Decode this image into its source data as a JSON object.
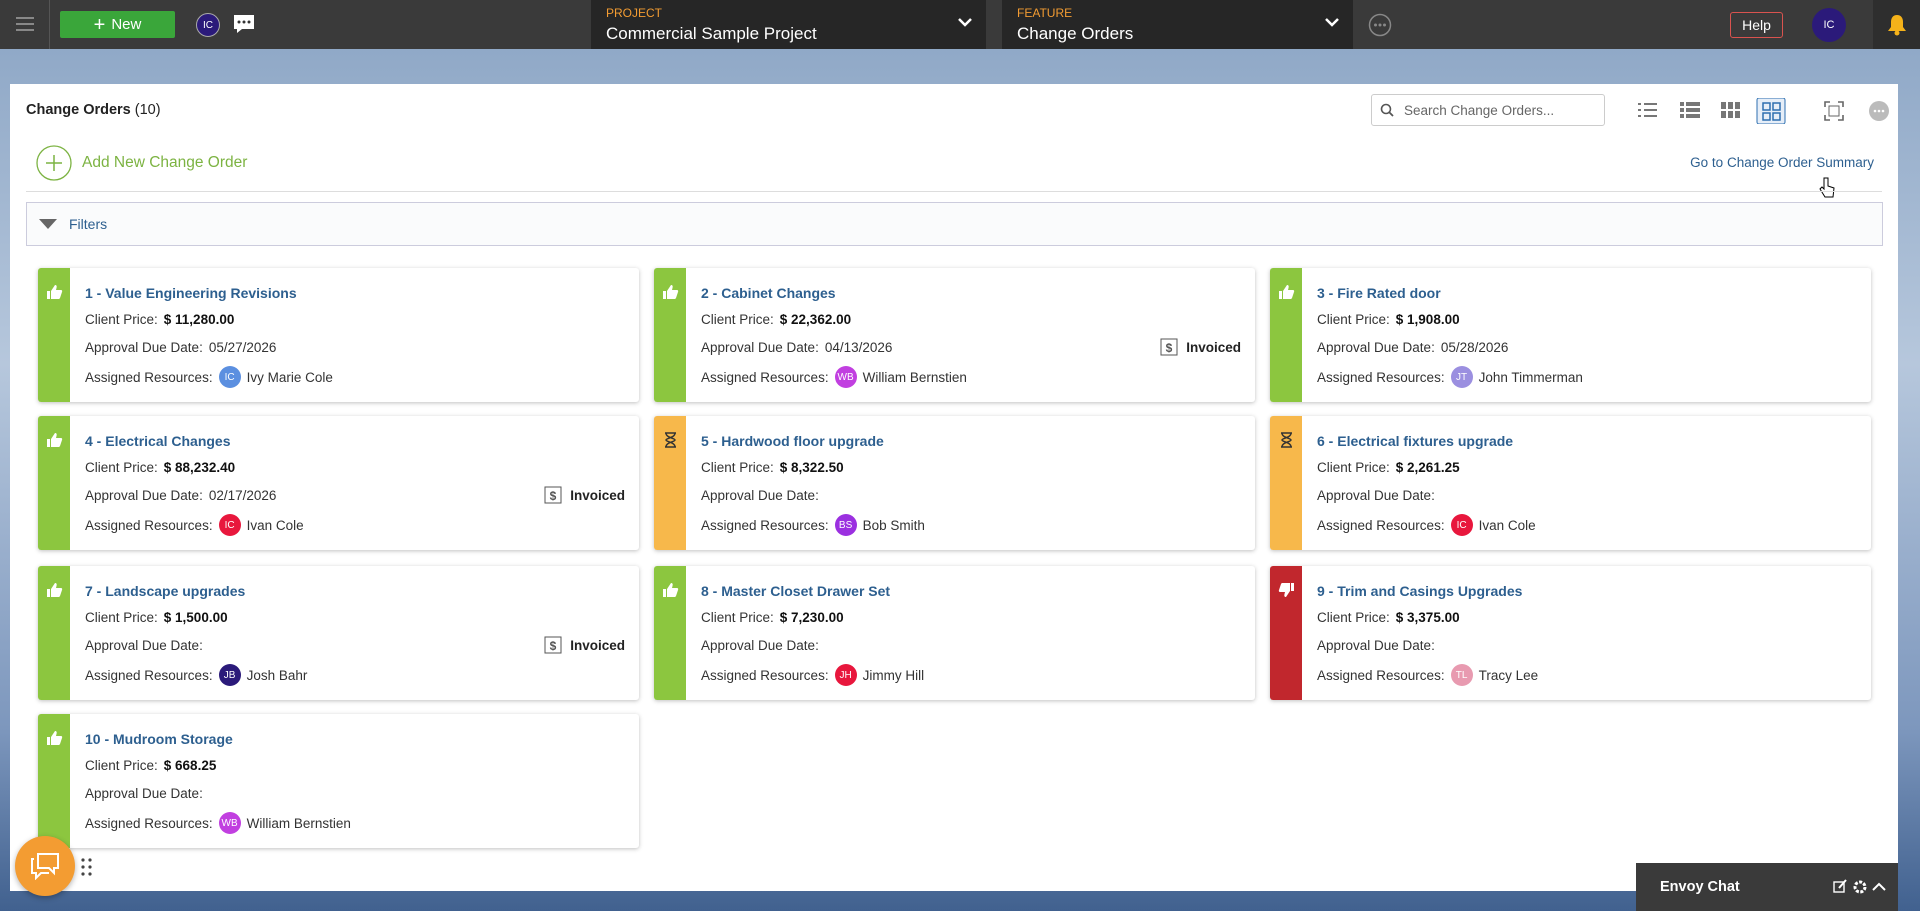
{
  "topbar": {
    "new_button": "New",
    "user_initials": "IC",
    "project_label": "PROJECT",
    "project": "Commercial Sample Project",
    "feature_label": "FEATURE",
    "feature": "Change Orders",
    "help": "Help"
  },
  "panel": {
    "title": "Change Orders",
    "count": "(10)",
    "search_placeholder": "Search Change Orders...",
    "add_new": "Add New Change Order",
    "summary_link": "Go to Change Order Summary",
    "filters": "Filters"
  },
  "labels": {
    "client_price": "Client Price:",
    "due_date": "Approval Due Date:",
    "resources": "Assigned Resources:",
    "invoiced": "Invoiced"
  },
  "cards": [
    {
      "title": "1 - Value Engineering Revisions",
      "price": "$ 11,280.00",
      "due": "05/27/2026",
      "resource": "Ivy Marie Cole",
      "initials": "IC",
      "avatar": "#5b8fe0",
      "status": "approved",
      "color": "#8cc63f",
      "invoiced": false
    },
    {
      "title": "2 - Cabinet Changes",
      "price": "$ 22,362.00",
      "due": "04/13/2026",
      "resource": "William Bernstien",
      "initials": "WB",
      "avatar": "#c13fe0",
      "status": "approved",
      "color": "#8cc63f",
      "invoiced": true
    },
    {
      "title": "3 - Fire Rated door",
      "price": "$ 1,908.00",
      "due": "05/28/2026",
      "resource": "John Timmerman",
      "initials": "JT",
      "avatar": "#9b8fe0",
      "status": "approved",
      "color": "#8cc63f",
      "invoiced": false
    },
    {
      "title": "4 - Electrical Changes",
      "price": "$ 88,232.40",
      "due": "02/17/2026",
      "resource": "Ivan Cole",
      "initials": "IC",
      "avatar": "#e8173d",
      "status": "approved",
      "color": "#8cc63f",
      "invoiced": true
    },
    {
      "title": "5 - Hardwood floor upgrade",
      "price": "$ 8,322.50",
      "resource": "Bob Smith",
      "initials": "BS",
      "avatar": "#9b30e0",
      "status": "pending",
      "color": "#f7b84b",
      "invoiced": false
    },
    {
      "title": "6 - Electrical fixtures upgrade",
      "price": "$ 2,261.25",
      "resource": "Ivan Cole",
      "initials": "IC",
      "avatar": "#e8173d",
      "status": "pending",
      "color": "#f7b84b",
      "invoiced": false
    },
    {
      "title": "7 - Landscape upgrades",
      "price": "$ 1,500.00",
      "resource": "Josh Bahr",
      "initials": "JB",
      "avatar": "#2b1a7a",
      "status": "approved",
      "color": "#8cc63f",
      "invoiced": true
    },
    {
      "title": "8 - Master Closet Drawer Set",
      "price": "$ 7,230.00",
      "resource": "Jimmy Hill",
      "initials": "JH",
      "avatar": "#e8173d",
      "status": "approved",
      "color": "#8cc63f",
      "invoiced": false
    },
    {
      "title": "9 - Trim and Casings Upgrades",
      "price": "$ 3,375.00",
      "resource": "Tracy Lee",
      "initials": "TL",
      "avatar": "#e89ab0",
      "status": "rejected",
      "color": "#c1272d",
      "invoiced": false
    },
    {
      "title": "10 - Mudroom Storage",
      "price": "$ 668.25",
      "resource": "William Bernstien",
      "initials": "WB",
      "avatar": "#c13fe0",
      "status": "approved",
      "color": "#8cc63f",
      "invoiced": false
    }
  ],
  "chat": {
    "title": "Envoy Chat"
  }
}
